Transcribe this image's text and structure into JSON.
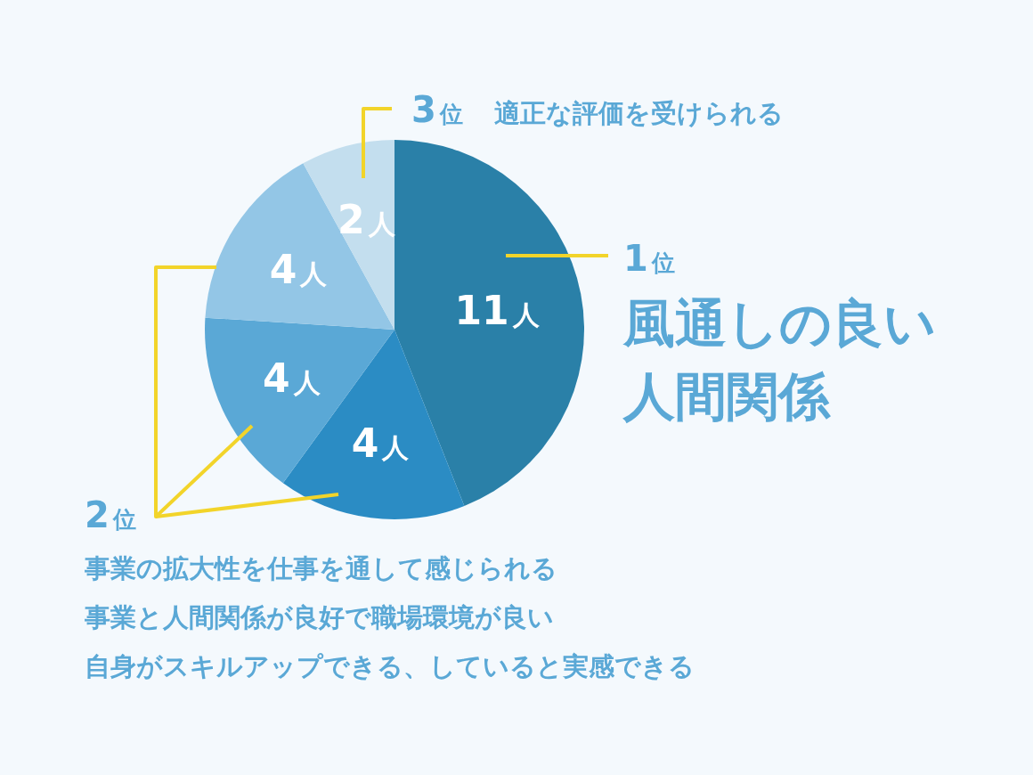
{
  "chart_data": {
    "type": "pie",
    "categories": [
      "風通しの良い人間関係",
      null,
      null,
      null,
      null
    ],
    "values": [
      11,
      4,
      4,
      4,
      2
    ],
    "colors": [
      "#2a80a8",
      "#2b8cc4",
      "#5aa8d6",
      "#93c6e6",
      "#c3deee"
    ],
    "value_labels": [
      "11人",
      "4人",
      "4人",
      "4人",
      "2人"
    ],
    "annotations": [
      "1位",
      "2位",
      "3位",
      "適正な評価を受けられる",
      "事業の拡大性を仕事を通して感じられる",
      "事業と人間関係が良好で職場環境が良い",
      "自身がスキルアップできる、していると実感できる"
    ]
  }
}
